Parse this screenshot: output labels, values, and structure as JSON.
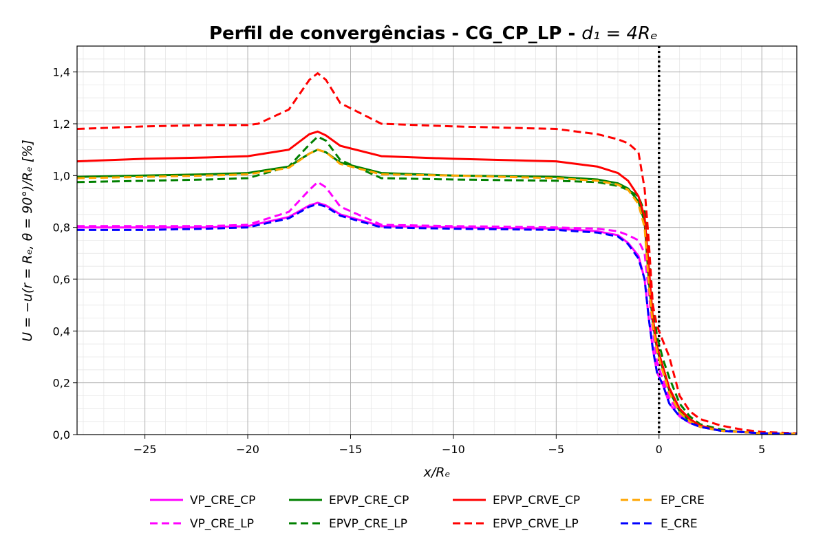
{
  "chart_data": {
    "type": "line",
    "title": "Perfil de convergências - CG_CP_LP - ",
    "title_math": "d₁ = 4Rₑ",
    "xlabel": "x/Rₑ",
    "ylabel": "U = −u(r = Rₑ, θ = 90°)/Rₑ [%]",
    "xlim": [
      -28.3,
      6.7
    ],
    "ylim": [
      0.0,
      1.5
    ],
    "xticks": [
      -25,
      -20,
      -15,
      -10,
      -5,
      0,
      5
    ],
    "xtick_labels": [
      "−25",
      "−20",
      "−15",
      "−10",
      "−5",
      "0",
      "5"
    ],
    "yticks": [
      0.0,
      0.2,
      0.4,
      0.6,
      0.8,
      1.0,
      1.2,
      1.4
    ],
    "ytick_labels": [
      "0,0",
      "0,2",
      "0,4",
      "0,6",
      "0,8",
      "1,0",
      "1,2",
      "1,4"
    ],
    "grid": true,
    "minor_grid": true,
    "vline_x": 0,
    "legend_location": "bottom-center",
    "series": [
      {
        "name": "VP_CRE_CP",
        "color": "#ff00ff",
        "dash": "solid",
        "x": [
          -28.3,
          -25,
          -22,
          -20,
          -18,
          -17,
          -16.6,
          -16.2,
          -15.5,
          -13.5,
          -10,
          -5,
          -3,
          -2,
          -1.5,
          -1,
          -0.7,
          -0.5,
          -0.3,
          -0.1,
          0.2,
          0.5,
          1,
          1.5,
          2,
          3,
          4,
          5,
          6.7
        ],
        "y": [
          0.8,
          0.8,
          0.8,
          0.805,
          0.84,
          0.885,
          0.895,
          0.885,
          0.85,
          0.805,
          0.8,
          0.795,
          0.785,
          0.77,
          0.74,
          0.69,
          0.6,
          0.45,
          0.33,
          0.24,
          0.19,
          0.12,
          0.07,
          0.045,
          0.03,
          0.015,
          0.01,
          0.005,
          0.003
        ]
      },
      {
        "name": "VP_CRE_LP",
        "color": "#ff00ff",
        "dash": "dashed",
        "x": [
          -28.3,
          -25,
          -22,
          -20,
          -18,
          -17,
          -16.6,
          -16.2,
          -15.5,
          -13.5,
          -10,
          -5,
          -3,
          -2,
          -1.5,
          -1,
          -0.7,
          -0.5,
          -0.3,
          -0.1,
          0.2,
          0.5,
          1,
          1.5,
          2,
          3,
          4,
          5,
          6.7
        ],
        "y": [
          0.805,
          0.805,
          0.805,
          0.81,
          0.86,
          0.945,
          0.975,
          0.955,
          0.88,
          0.81,
          0.805,
          0.8,
          0.795,
          0.785,
          0.77,
          0.75,
          0.7,
          0.55,
          0.4,
          0.28,
          0.21,
          0.14,
          0.08,
          0.05,
          0.03,
          0.015,
          0.01,
          0.005,
          0.003
        ]
      },
      {
        "name": "EPVP_CRE_CP",
        "color": "#008000",
        "dash": "solid",
        "x": [
          -28.3,
          -25,
          -22,
          -20,
          -18,
          -17,
          -16.6,
          -16.2,
          -15.5,
          -13.5,
          -10,
          -5,
          -3,
          -2,
          -1.5,
          -1,
          -0.7,
          -0.5,
          -0.3,
          -0.1,
          0.2,
          0.5,
          1,
          1.5,
          2,
          3,
          4,
          5,
          6.7
        ],
        "y": [
          0.995,
          1.0,
          1.005,
          1.01,
          1.035,
          1.085,
          1.1,
          1.09,
          1.05,
          1.01,
          1.0,
          0.995,
          0.985,
          0.97,
          0.95,
          0.9,
          0.82,
          0.6,
          0.43,
          0.33,
          0.25,
          0.17,
          0.09,
          0.05,
          0.03,
          0.015,
          0.01,
          0.005,
          0.003
        ]
      },
      {
        "name": "EPVP_CRE_LP",
        "color": "#008000",
        "dash": "dashed",
        "x": [
          -28.3,
          -25,
          -22,
          -20,
          -18,
          -17,
          -16.6,
          -16.2,
          -15.5,
          -13.5,
          -10,
          -5,
          -3,
          -2,
          -1.5,
          -1,
          -0.7,
          -0.5,
          -0.3,
          -0.1,
          0.2,
          0.5,
          1,
          1.5,
          2,
          3,
          4,
          5,
          6.7
        ],
        "y": [
          0.975,
          0.98,
          0.985,
          0.99,
          1.035,
          1.12,
          1.15,
          1.135,
          1.06,
          0.99,
          0.985,
          0.98,
          0.975,
          0.96,
          0.945,
          0.92,
          0.86,
          0.7,
          0.5,
          0.38,
          0.29,
          0.22,
          0.12,
          0.07,
          0.04,
          0.02,
          0.01,
          0.005,
          0.003
        ]
      },
      {
        "name": "EPVP_CRVE_CP",
        "color": "#ff0000",
        "dash": "solid",
        "x": [
          -28.3,
          -25,
          -22,
          -20,
          -18,
          -17,
          -16.6,
          -16.2,
          -15.5,
          -13.5,
          -10,
          -5,
          -3,
          -2,
          -1.5,
          -1,
          -0.7,
          -0.5,
          -0.3,
          -0.1,
          0.2,
          0.5,
          1,
          1.5,
          2,
          3,
          4,
          5,
          6.7
        ],
        "y": [
          1.055,
          1.065,
          1.07,
          1.075,
          1.1,
          1.16,
          1.17,
          1.155,
          1.115,
          1.075,
          1.065,
          1.055,
          1.035,
          1.01,
          0.98,
          0.92,
          0.84,
          0.65,
          0.45,
          0.34,
          0.26,
          0.18,
          0.1,
          0.06,
          0.035,
          0.015,
          0.01,
          0.005,
          0.003
        ]
      },
      {
        "name": "EPVP_CRVE_LP",
        "color": "#ff0000",
        "dash": "dashed",
        "x": [
          -28.3,
          -25,
          -22,
          -20,
          -19.5,
          -18,
          -17,
          -16.6,
          -16.2,
          -15.5,
          -13.5,
          -10,
          -5,
          -3,
          -2,
          -1.5,
          -1,
          -0.7,
          -0.5,
          -0.3,
          -0.1,
          0.2,
          0.5,
          1,
          1.5,
          2,
          3,
          4,
          5,
          6.7
        ],
        "y": [
          1.18,
          1.19,
          1.195,
          1.195,
          1.2,
          1.255,
          1.37,
          1.395,
          1.37,
          1.28,
          1.2,
          1.19,
          1.18,
          1.16,
          1.14,
          1.125,
          1.09,
          0.95,
          0.75,
          0.5,
          0.42,
          0.36,
          0.3,
          0.15,
          0.09,
          0.06,
          0.035,
          0.02,
          0.01,
          0.005
        ]
      },
      {
        "name": "EP_CRE",
        "color": "#ffa500",
        "dash": "dashed",
        "x": [
          -28.3,
          -25,
          -22,
          -20,
          -18,
          -17,
          -16.6,
          -16.2,
          -15.5,
          -13.5,
          -10,
          -5,
          -3,
          -2,
          -1.5,
          -1,
          -0.7,
          -0.5,
          -0.3,
          -0.1,
          0.2,
          0.5,
          1,
          1.5,
          2,
          3,
          4,
          5,
          6.7
        ],
        "y": [
          0.99,
          0.995,
          1.0,
          1.005,
          1.03,
          1.085,
          1.1,
          1.09,
          1.045,
          1.005,
          1.0,
          0.99,
          0.98,
          0.965,
          0.945,
          0.89,
          0.8,
          0.58,
          0.42,
          0.32,
          0.24,
          0.16,
          0.085,
          0.05,
          0.03,
          0.015,
          0.01,
          0.005,
          0.003
        ]
      },
      {
        "name": "E_CRE",
        "color": "#0000ff",
        "dash": "dashed",
        "x": [
          -28.3,
          -25,
          -22,
          -20,
          -18,
          -17,
          -16.6,
          -16.2,
          -15.5,
          -13.5,
          -10,
          -5,
          -3,
          -2,
          -1.5,
          -1,
          -0.7,
          -0.5,
          -0.3,
          -0.1,
          0.2,
          0.5,
          1,
          1.5,
          2,
          3,
          4,
          5,
          6.7
        ],
        "y": [
          0.79,
          0.79,
          0.795,
          0.8,
          0.835,
          0.88,
          0.89,
          0.88,
          0.845,
          0.8,
          0.795,
          0.79,
          0.78,
          0.765,
          0.735,
          0.68,
          0.6,
          0.45,
          0.33,
          0.24,
          0.19,
          0.12,
          0.07,
          0.045,
          0.03,
          0.015,
          0.01,
          0.005,
          0.003
        ]
      }
    ]
  }
}
